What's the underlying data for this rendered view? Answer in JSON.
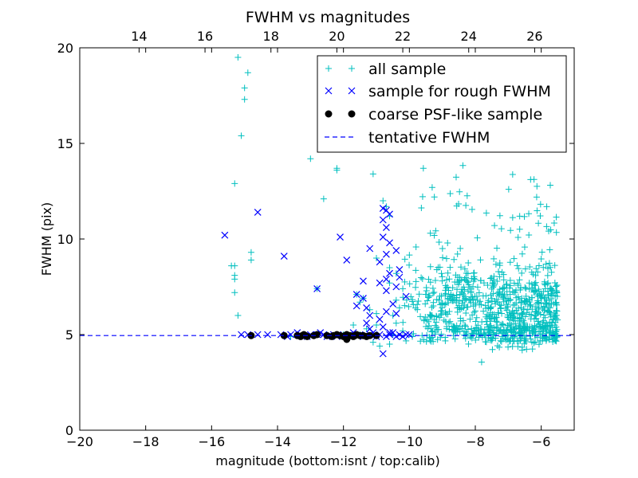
{
  "chart_data": {
    "type": "scatter",
    "title": "FWHM vs magnitudes",
    "xlabel": "magnitude (bottom:isnt / top:calib)",
    "ylabel": "FWHM (pix)",
    "xlim": [
      -20,
      -5
    ],
    "ylim": [
      0,
      20
    ],
    "x_ticks": [
      -20,
      -18,
      -16,
      -14,
      -12,
      -10,
      -8,
      -6
    ],
    "x_tick_labels": [
      "−20",
      "−18",
      "−16",
      "−14",
      "−12",
      "−10",
      "−8",
      "−6"
    ],
    "y_ticks": [
      0,
      5,
      10,
      15,
      20
    ],
    "y_tick_labels": [
      "0",
      "5",
      "10",
      "15",
      "20"
    ],
    "top_axis": {
      "offset": 32.2,
      "ticks": [
        14,
        16,
        18,
        20,
        22,
        24,
        26
      ],
      "tick_labels": [
        "14",
        "16",
        "18",
        "20",
        "22",
        "24",
        "26"
      ]
    },
    "grid": false,
    "legend_position": "top-right",
    "series": [
      {
        "name": "all sample",
        "marker": "plus",
        "color": "#00bfbf",
        "generated_cloud": {
          "count": 900,
          "x_range": [
            -10.2,
            -5.5
          ],
          "y_center": 6.5,
          "seed": 7
        },
        "points": [
          [
            -15.2,
            19.5
          ],
          [
            -14.9,
            18.7
          ],
          [
            -15.0,
            17.9
          ],
          [
            -15.0,
            17.3
          ],
          [
            -15.1,
            15.4
          ],
          [
            -15.3,
            12.9
          ],
          [
            -15.4,
            8.6
          ],
          [
            -15.3,
            8.6
          ],
          [
            -15.3,
            8.1
          ],
          [
            -15.3,
            7.9
          ],
          [
            -15.3,
            7.2
          ],
          [
            -15.2,
            6.0
          ],
          [
            -14.8,
            9.3
          ],
          [
            -14.8,
            8.9
          ],
          [
            -13.0,
            14.2
          ],
          [
            -12.6,
            12.1
          ],
          [
            -12.2,
            13.7
          ],
          [
            -12.2,
            13.6
          ],
          [
            -11.1,
            13.4
          ],
          [
            -10.8,
            12.0
          ],
          [
            -10.7,
            11.7
          ],
          [
            -10.6,
            11.2
          ],
          [
            -11.6,
            7.1
          ],
          [
            -11.4,
            6.9
          ],
          [
            -11.5,
            6.7
          ],
          [
            -11.2,
            6.3
          ],
          [
            -11.0,
            6.1
          ],
          [
            -11.7,
            5.5
          ],
          [
            -11.3,
            5.3
          ],
          [
            -11.0,
            5.5
          ],
          [
            -11.1,
            4.6
          ],
          [
            -10.9,
            4.4
          ],
          [
            -10.6,
            4.5
          ],
          [
            -11.0,
            9.0
          ],
          [
            -10.6,
            8.5
          ],
          [
            -10.4,
            8.2
          ],
          [
            -10.6,
            7.7
          ],
          [
            -10.2,
            7.4
          ],
          [
            -10.4,
            6.8
          ],
          [
            -10.3,
            6.4
          ],
          [
            -10.5,
            6.0
          ],
          [
            -10.4,
            5.6
          ],
          [
            -10.2,
            5.2
          ],
          [
            -12.8,
            7.4
          ],
          [
            -13.4,
            5.0
          ],
          [
            -12.9,
            5.0
          ],
          [
            -12.5,
            5.0
          ],
          [
            -12.0,
            5.0
          ],
          [
            -11.5,
            5.0
          ],
          [
            -11.0,
            5.0
          ],
          [
            -10.5,
            5.0
          ],
          [
            -13.6,
            4.9
          ],
          [
            -12.3,
            4.9
          ],
          [
            -11.8,
            4.9
          ]
        ]
      },
      {
        "name": "sample for rough FWHM",
        "marker": "x",
        "color": "#0000ff",
        "points": [
          [
            -15.6,
            10.2
          ],
          [
            -14.6,
            11.4
          ],
          [
            -13.8,
            9.1
          ],
          [
            -12.1,
            10.1
          ],
          [
            -11.9,
            8.9
          ],
          [
            -12.8,
            7.4
          ],
          [
            -10.8,
            11.6
          ],
          [
            -10.7,
            11.5
          ],
          [
            -10.6,
            11.3
          ],
          [
            -10.8,
            11.0
          ],
          [
            -10.7,
            10.6
          ],
          [
            -10.8,
            10.1
          ],
          [
            -10.6,
            9.8
          ],
          [
            -10.4,
            9.4
          ],
          [
            -10.7,
            9.2
          ],
          [
            -10.9,
            8.8
          ],
          [
            -11.2,
            9.5
          ],
          [
            -10.3,
            8.4
          ],
          [
            -10.6,
            8.2
          ],
          [
            -10.7,
            7.9
          ],
          [
            -10.9,
            7.7
          ],
          [
            -11.4,
            7.8
          ],
          [
            -10.4,
            7.5
          ],
          [
            -10.7,
            7.3
          ],
          [
            -11.6,
            7.1
          ],
          [
            -11.4,
            6.9
          ],
          [
            -10.5,
            6.6
          ],
          [
            -11.3,
            6.4
          ],
          [
            -11.6,
            6.5
          ],
          [
            -10.7,
            6.2
          ],
          [
            -11.2,
            6.0
          ],
          [
            -10.9,
            5.8
          ],
          [
            -10.8,
            5.4
          ],
          [
            -11.3,
            5.6
          ],
          [
            -10.6,
            5.1
          ],
          [
            -11.2,
            5.3
          ],
          [
            -10.4,
            6.1
          ],
          [
            -10.3,
            8.0
          ],
          [
            -10.1,
            7.0
          ],
          [
            -10.8,
            4.0
          ],
          [
            -15.1,
            5.0
          ],
          [
            -14.9,
            5.0
          ],
          [
            -14.6,
            5.0
          ],
          [
            -14.3,
            5.0
          ],
          [
            -13.9,
            5.0
          ],
          [
            -13.6,
            5.0
          ],
          [
            -13.3,
            5.0
          ],
          [
            -13.0,
            5.0
          ],
          [
            -12.8,
            5.0
          ],
          [
            -12.6,
            5.0
          ],
          [
            -12.3,
            5.0
          ],
          [
            -12.0,
            5.0
          ],
          [
            -11.8,
            5.0
          ],
          [
            -11.5,
            5.0
          ],
          [
            -11.2,
            5.0
          ],
          [
            -10.9,
            5.0
          ],
          [
            -10.6,
            5.0
          ],
          [
            -10.3,
            5.0
          ],
          [
            -10.1,
            5.0
          ],
          [
            -10.0,
            5.0
          ],
          [
            -13.7,
            4.9
          ],
          [
            -13.1,
            4.9
          ],
          [
            -12.5,
            4.9
          ],
          [
            -12.2,
            4.9
          ],
          [
            -11.9,
            4.9
          ],
          [
            -11.4,
            4.9
          ],
          [
            -11.0,
            4.9
          ],
          [
            -10.7,
            4.9
          ],
          [
            -10.4,
            4.9
          ],
          [
            -10.2,
            4.9
          ],
          [
            -13.4,
            5.1
          ],
          [
            -12.7,
            5.1
          ],
          [
            -11.7,
            5.1
          ],
          [
            -11.1,
            5.1
          ],
          [
            -10.5,
            5.1
          ]
        ]
      },
      {
        "name": "coarse PSF-like sample",
        "marker": "dot",
        "color": "#000000",
        "points": [
          [
            -14.8,
            4.95
          ],
          [
            -13.8,
            4.95
          ],
          [
            -13.4,
            4.95
          ],
          [
            -13.3,
            4.9
          ],
          [
            -13.25,
            4.95
          ],
          [
            -13.2,
            5.0
          ],
          [
            -13.15,
            4.95
          ],
          [
            -13.1,
            4.9
          ],
          [
            -12.9,
            4.95
          ],
          [
            -12.8,
            5.0
          ],
          [
            -12.5,
            4.95
          ],
          [
            -12.35,
            4.9
          ],
          [
            -12.3,
            4.95
          ],
          [
            -12.2,
            5.0
          ],
          [
            -12.1,
            4.95
          ],
          [
            -12.0,
            4.9
          ],
          [
            -11.95,
            4.95
          ],
          [
            -11.9,
            5.0
          ],
          [
            -11.8,
            4.95
          ],
          [
            -11.7,
            4.9
          ],
          [
            -11.65,
            4.95
          ],
          [
            -11.6,
            5.0
          ],
          [
            -11.5,
            4.95
          ],
          [
            -11.4,
            4.95
          ],
          [
            -11.3,
            4.9
          ],
          [
            -11.2,
            4.95
          ],
          [
            -11.0,
            4.95
          ],
          [
            -11.9,
            4.75
          ]
        ]
      },
      {
        "name": "tentative FWHM",
        "marker": "dashed-line",
        "color": "#0000ff",
        "y": 4.95
      }
    ]
  }
}
